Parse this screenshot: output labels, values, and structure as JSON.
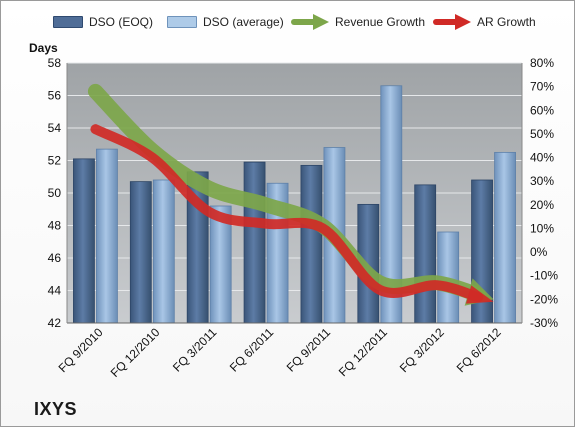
{
  "chart_data": {
    "type": "bar",
    "company": "IXYS",
    "ylabel": "Days",
    "ylim": [
      42,
      58
    ],
    "y_ticks": [
      "42",
      "44",
      "46",
      "48",
      "50",
      "52",
      "54",
      "56",
      "58"
    ],
    "y2lim": [
      -30,
      80
    ],
    "y2_ticks": [
      "-30%",
      "-20%",
      "-10%",
      "0%",
      "10%",
      "20%",
      "30%",
      "40%",
      "50%",
      "60%",
      "70%",
      "80%"
    ],
    "categories": [
      "FQ 9/2010",
      "FQ 12/2010",
      "FQ 3/2011",
      "FQ 6/2011",
      "FQ 9/2011",
      "FQ 12/2011",
      "FQ 3/2012",
      "FQ 6/2012"
    ],
    "series": [
      {
        "name": "DSO (EOQ)",
        "values": [
          52.1,
          50.7,
          51.3,
          51.9,
          51.7,
          49.3,
          50.5,
          50.8
        ],
        "color": "#4f6d97"
      },
      {
        "name": "DSO (average)",
        "values": [
          52.7,
          50.8,
          49.2,
          50.6,
          52.8,
          56.6,
          47.6,
          52.5
        ],
        "color": "#8fb2d8"
      },
      {
        "name": "Revenue Growth",
        "values": [
          68,
          43,
          27,
          20,
          11,
          -13,
          -13,
          -20
        ],
        "color": "#7da64a"
      },
      {
        "name": "AR Growth",
        "values": [
          52,
          40,
          17,
          12,
          10,
          -16,
          -14,
          -21
        ],
        "color": "#d02a26"
      }
    ],
    "grid": true,
    "legend": "top"
  }
}
